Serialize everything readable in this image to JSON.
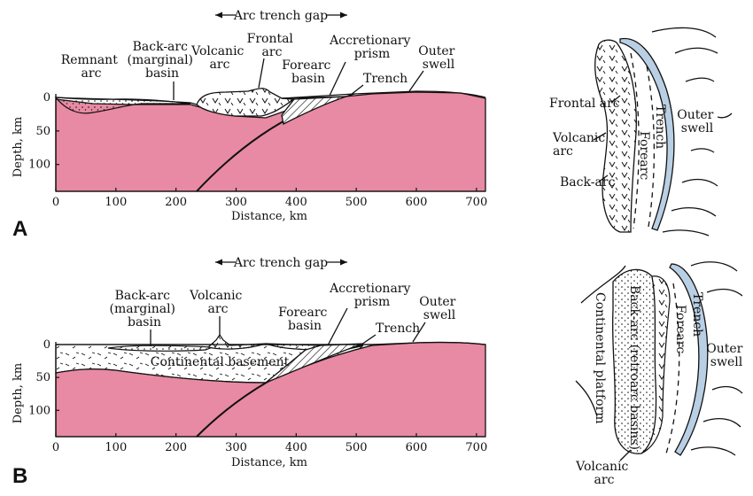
{
  "colors": {
    "mantle": "#e88aa3",
    "trench_strip": "#b9cfe4",
    "ink": "#111111"
  },
  "common": {
    "arc_trench_gap": "Arc trench gap",
    "depth_axis": "Depth, km",
    "distance_axis": "Distance, km",
    "x_ticks": [
      "0",
      "100",
      "200",
      "300",
      "400",
      "500",
      "600",
      "700"
    ],
    "y_ticks": [
      "0",
      "50",
      "100"
    ]
  },
  "panel_a": {
    "letter": "A",
    "labels": {
      "remnant_arc": [
        "Remnant",
        "arc"
      ],
      "back_arc_basin": [
        "Back-arc",
        "(marginal)",
        "basin"
      ],
      "volcanic_arc": [
        "Volcanic",
        "arc"
      ],
      "frontal_arc": [
        "Frontal",
        "arc"
      ],
      "forearc_basin": [
        "Forearc",
        "basin"
      ],
      "accretionary_prism": [
        "Accretionary",
        "prism"
      ],
      "trench": "Trench",
      "outer_swell": [
        "Outer",
        "swell"
      ]
    },
    "map_labels": {
      "frontal_arc": "Frontal arc",
      "volcanic_arc": [
        "Volcanic",
        "arc"
      ],
      "back_arc": "Back-arc",
      "trench": "Trench",
      "forearc": "Forearc",
      "outer_swell": [
        "Outer",
        "swell"
      ]
    }
  },
  "panel_b": {
    "letter": "B",
    "labels": {
      "back_arc_basin": [
        "Back-arc",
        "(marginal)",
        "basin"
      ],
      "volcanic_arc": [
        "Volcanic",
        "arc"
      ],
      "forearc_basin": [
        "Forearc",
        "basin"
      ],
      "accretionary_prism": [
        "Accretionary",
        "prism"
      ],
      "trench": "Trench",
      "outer_swell": [
        "Outer",
        "swell"
      ],
      "continental_basement": "Continental basement"
    },
    "map_labels": {
      "continental_platform": "Continental platform",
      "back_arc_retroarc": "Back-arc (retroarc basins)",
      "forearc": "Forearc",
      "trench": "Trench",
      "outer_swell": [
        "Outer",
        "swell"
      ],
      "volcanic_arc": [
        "Volcanic",
        "arc"
      ]
    }
  }
}
